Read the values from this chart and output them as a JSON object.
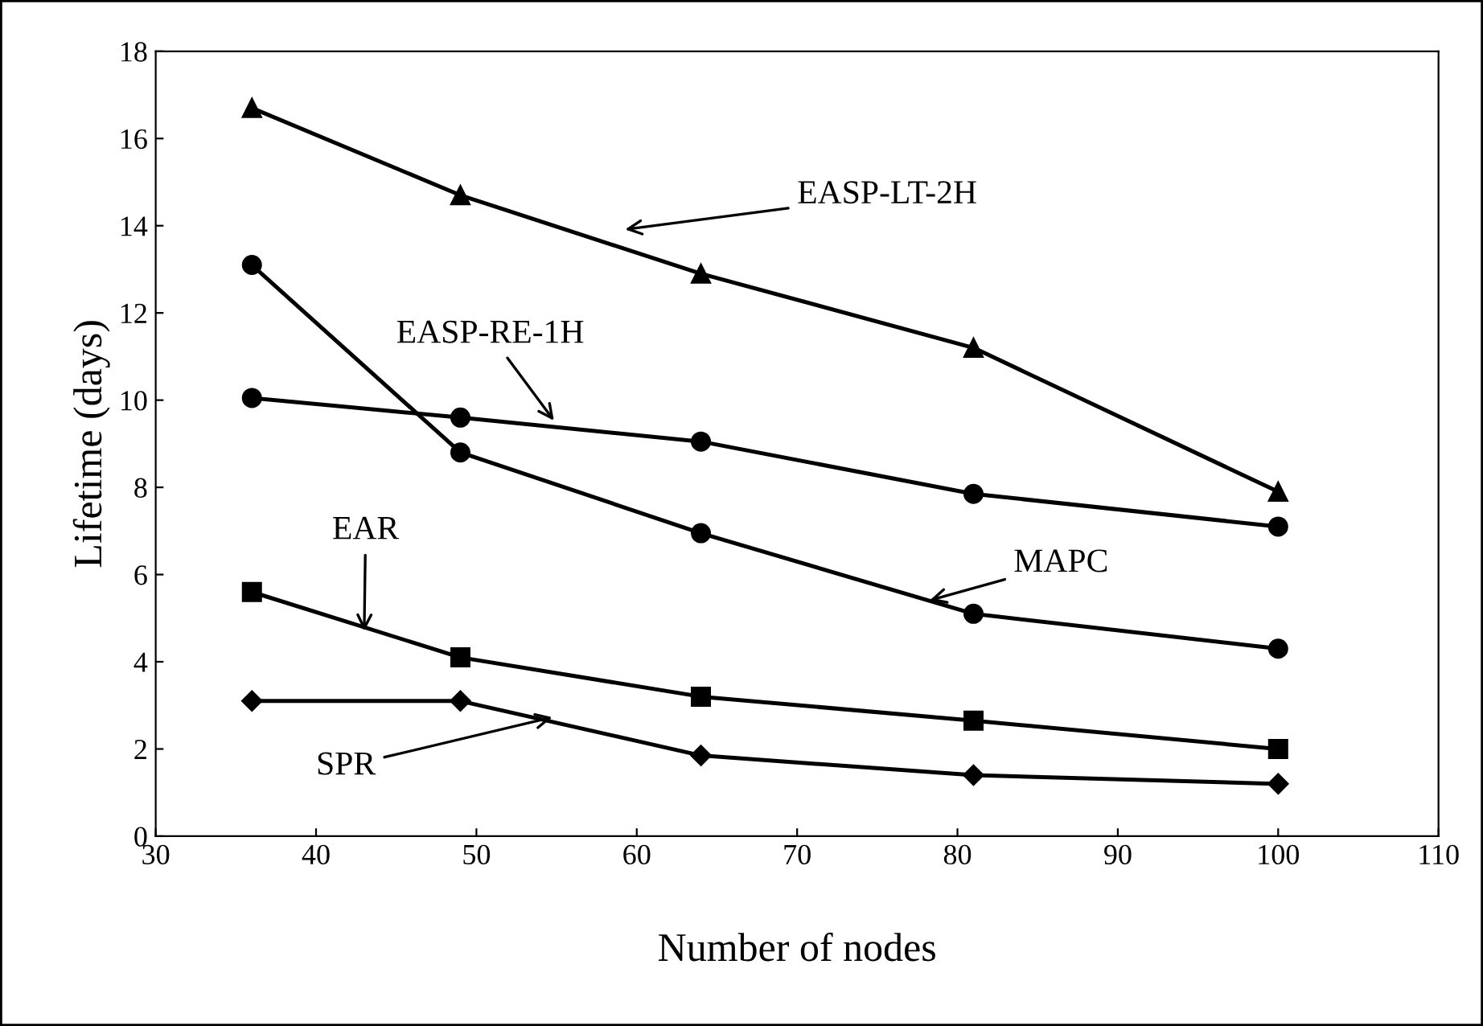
{
  "chart_data": {
    "type": "line",
    "xlabel": "Number of nodes",
    "ylabel": "Lifetime (days)",
    "x": [
      36,
      49,
      64,
      81,
      100
    ],
    "series": [
      {
        "name": "EASP-LT-2H",
        "color": "#000000",
        "marker": "triangle",
        "values": [
          16.7,
          14.7,
          12.9,
          11.2,
          7.9
        ]
      },
      {
        "name": "EASP-RE-1H",
        "color": "#000000",
        "marker": "circle",
        "values": [
          10.05,
          9.6,
          9.05,
          7.85,
          7.1
        ]
      },
      {
        "name": "MAPC",
        "color": "#000000",
        "marker": "circle",
        "values": [
          13.1,
          8.8,
          6.95,
          5.1,
          4.3
        ]
      },
      {
        "name": "EAR",
        "color": "#000000",
        "marker": "square",
        "values": [
          5.6,
          4.1,
          3.2,
          2.65,
          2.0
        ]
      },
      {
        "name": "SPR",
        "color": "#000000",
        "marker": "diamond",
        "values": [
          3.1,
          3.1,
          1.85,
          1.4,
          1.2
        ]
      }
    ],
    "xlim": [
      30,
      110
    ],
    "xticks": [
      30,
      40,
      50,
      60,
      70,
      80,
      90,
      100,
      110
    ],
    "ylim": [
      0,
      18
    ],
    "yticks": [
      0,
      2,
      4,
      6,
      8,
      10,
      12,
      14,
      16,
      18
    ],
    "line_style": "solid",
    "grid": false,
    "legend": false
  }
}
